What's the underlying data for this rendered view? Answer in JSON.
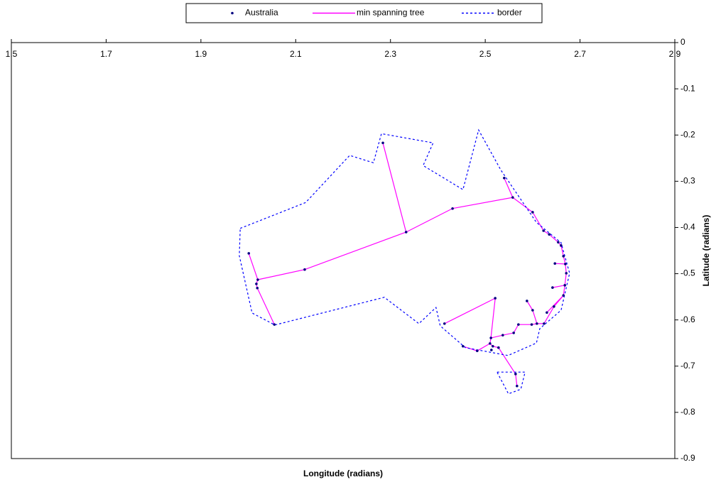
{
  "chart_data": {
    "type": "scatter",
    "xlabel": "Longitude (radians)",
    "ylabel": "Latitude (radians)",
    "xlim": [
      1.5,
      2.9
    ],
    "xticks": [
      1.5,
      1.7,
      1.9,
      2.1,
      2.3,
      2.5,
      2.7,
      2.9
    ],
    "ylim": [
      -0.9,
      0
    ],
    "yticks": [
      0,
      -0.1,
      -0.2,
      -0.3,
      -0.4,
      -0.5,
      -0.6,
      -0.7,
      -0.8,
      -0.9
    ],
    "legend": "top",
    "series": [
      {
        "name": "Australia",
        "color": "#000080",
        "mode": "markers",
        "x": [
          2.284,
          2.333,
          2.431,
          2.558,
          2.54,
          2.6,
          2.623,
          2.635,
          2.654,
          2.66,
          2.665,
          2.669,
          2.647,
          2.671,
          2.668,
          2.642,
          2.665,
          2.645,
          2.63,
          2.624,
          2.609,
          2.598,
          2.6,
          2.588,
          2.57,
          2.56,
          2.537,
          2.512,
          2.521,
          2.414,
          2.51,
          2.516,
          2.528,
          2.513,
          2.483,
          2.453,
          2.564,
          2.567,
          2.119,
          2.001,
          2.02,
          2.017,
          2.019,
          2.055
        ],
        "y": [
          -0.217,
          -0.41,
          -0.359,
          -0.335,
          -0.293,
          -0.367,
          -0.407,
          -0.415,
          -0.432,
          -0.439,
          -0.462,
          -0.479,
          -0.478,
          -0.499,
          -0.525,
          -0.53,
          -0.547,
          -0.571,
          -0.584,
          -0.608,
          -0.608,
          -0.61,
          -0.579,
          -0.559,
          -0.61,
          -0.628,
          -0.633,
          -0.639,
          -0.553,
          -0.608,
          -0.651,
          -0.657,
          -0.66,
          -0.665,
          -0.667,
          -0.657,
          -0.717,
          -0.743,
          -0.491,
          -0.456,
          -0.513,
          -0.522,
          -0.531,
          -0.61
        ]
      },
      {
        "name": "min spanning tree",
        "color": "#ff00ff",
        "mode": "line",
        "dash": "solid",
        "x": [
          2.284,
          2.333,
          null,
          2.001,
          2.02,
          2.119,
          2.333,
          2.431,
          2.558,
          2.6,
          2.623,
          2.635,
          2.654,
          2.66,
          2.665,
          2.669,
          2.671,
          2.668,
          2.665,
          2.645,
          2.624,
          2.609,
          2.598,
          2.57,
          2.56,
          2.537,
          2.512,
          2.51,
          2.516,
          2.528,
          2.564,
          2.567,
          null,
          2.558,
          2.54,
          null,
          2.669,
          2.647,
          null,
          2.668,
          2.642,
          null,
          2.609,
          2.6,
          2.588,
          null,
          2.512,
          2.521,
          2.414,
          null,
          2.51,
          2.483,
          2.453,
          null,
          2.02,
          2.017,
          2.019,
          2.055,
          null,
          2.665,
          2.63
        ],
        "y": [
          -0.217,
          -0.41,
          null,
          -0.456,
          -0.513,
          -0.491,
          -0.41,
          -0.359,
          -0.335,
          -0.367,
          -0.407,
          -0.415,
          -0.432,
          -0.439,
          -0.462,
          -0.479,
          -0.499,
          -0.525,
          -0.547,
          -0.571,
          -0.608,
          -0.608,
          -0.61,
          -0.61,
          -0.628,
          -0.633,
          -0.639,
          -0.651,
          -0.657,
          -0.66,
          -0.717,
          -0.743,
          null,
          -0.335,
          -0.293,
          null,
          -0.479,
          -0.478,
          null,
          -0.525,
          -0.53,
          null,
          -0.608,
          -0.579,
          -0.559,
          null,
          -0.639,
          -0.553,
          -0.608,
          null,
          -0.651,
          -0.667,
          -0.657,
          null,
          -0.513,
          -0.522,
          -0.531,
          -0.61,
          null,
          -0.547,
          -0.584
        ]
      },
      {
        "name": "border",
        "color": "#0000ff",
        "mode": "line",
        "dash": "dotted",
        "x": [
          1.983,
          2.121,
          2.214,
          2.264,
          2.281,
          2.39,
          2.369,
          2.453,
          2.486,
          2.533,
          2.608,
          2.66,
          2.678,
          2.66,
          2.615,
          2.608,
          2.548,
          2.458,
          2.405,
          2.396,
          2.36,
          2.287,
          2.056,
          2.008,
          1.981,
          1.983,
          null,
          2.525,
          2.584,
          2.575,
          2.549,
          2.525
        ],
        "y": [
          -0.402,
          -0.346,
          -0.244,
          -0.26,
          -0.197,
          -0.217,
          -0.266,
          -0.318,
          -0.189,
          -0.276,
          -0.389,
          -0.433,
          -0.499,
          -0.579,
          -0.619,
          -0.65,
          -0.677,
          -0.66,
          -0.613,
          -0.573,
          -0.608,
          -0.551,
          -0.611,
          -0.585,
          -0.461,
          -0.402,
          null,
          -0.713,
          -0.713,
          -0.75,
          -0.76,
          -0.713
        ]
      }
    ]
  }
}
